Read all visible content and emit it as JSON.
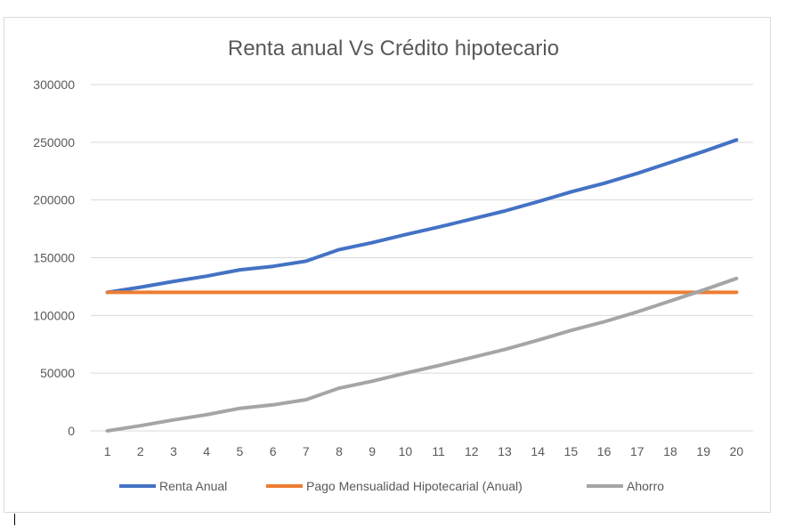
{
  "chart_data": {
    "type": "line",
    "title": "Renta anual Vs Crédito hipotecario",
    "xlabel": "",
    "ylabel": "",
    "categories": [
      "1",
      "2",
      "3",
      "4",
      "5",
      "6",
      "7",
      "8",
      "9",
      "10",
      "11",
      "12",
      "13",
      "14",
      "15",
      "16",
      "17",
      "18",
      "19",
      "20"
    ],
    "ylim": [
      0,
      300000
    ],
    "yticks": [
      0,
      50000,
      100000,
      150000,
      200000,
      250000,
      300000
    ],
    "ytick_labels": [
      "0",
      "50000",
      "100000",
      "150000",
      "200000",
      "250000",
      "300000"
    ],
    "grid": true,
    "legend_position": "bottom",
    "series": [
      {
        "name": "Renta Anual",
        "color": "#4472c4",
        "values": [
          120000,
          124500,
          129500,
          134000,
          139500,
          142500,
          147000,
          157000,
          163000,
          170000,
          176500,
          183500,
          190500,
          198500,
          207000,
          214500,
          223000,
          232500,
          242000,
          252000
        ]
      },
      {
        "name": "Pago Mensualidad Hipotecarial (Anual)",
        "color": "#ed7d31",
        "values": [
          120000,
          120000,
          120000,
          120000,
          120000,
          120000,
          120000,
          120000,
          120000,
          120000,
          120000,
          120000,
          120000,
          120000,
          120000,
          120000,
          120000,
          120000,
          120000,
          120000
        ]
      },
      {
        "name": "Ahorro",
        "color": "#a5a5a5",
        "values": [
          0,
          4500,
          9500,
          14000,
          19500,
          22500,
          27000,
          37000,
          43000,
          50000,
          56500,
          63500,
          70500,
          78500,
          87000,
          94500,
          103000,
          112500,
          122000,
          132000
        ]
      }
    ]
  }
}
